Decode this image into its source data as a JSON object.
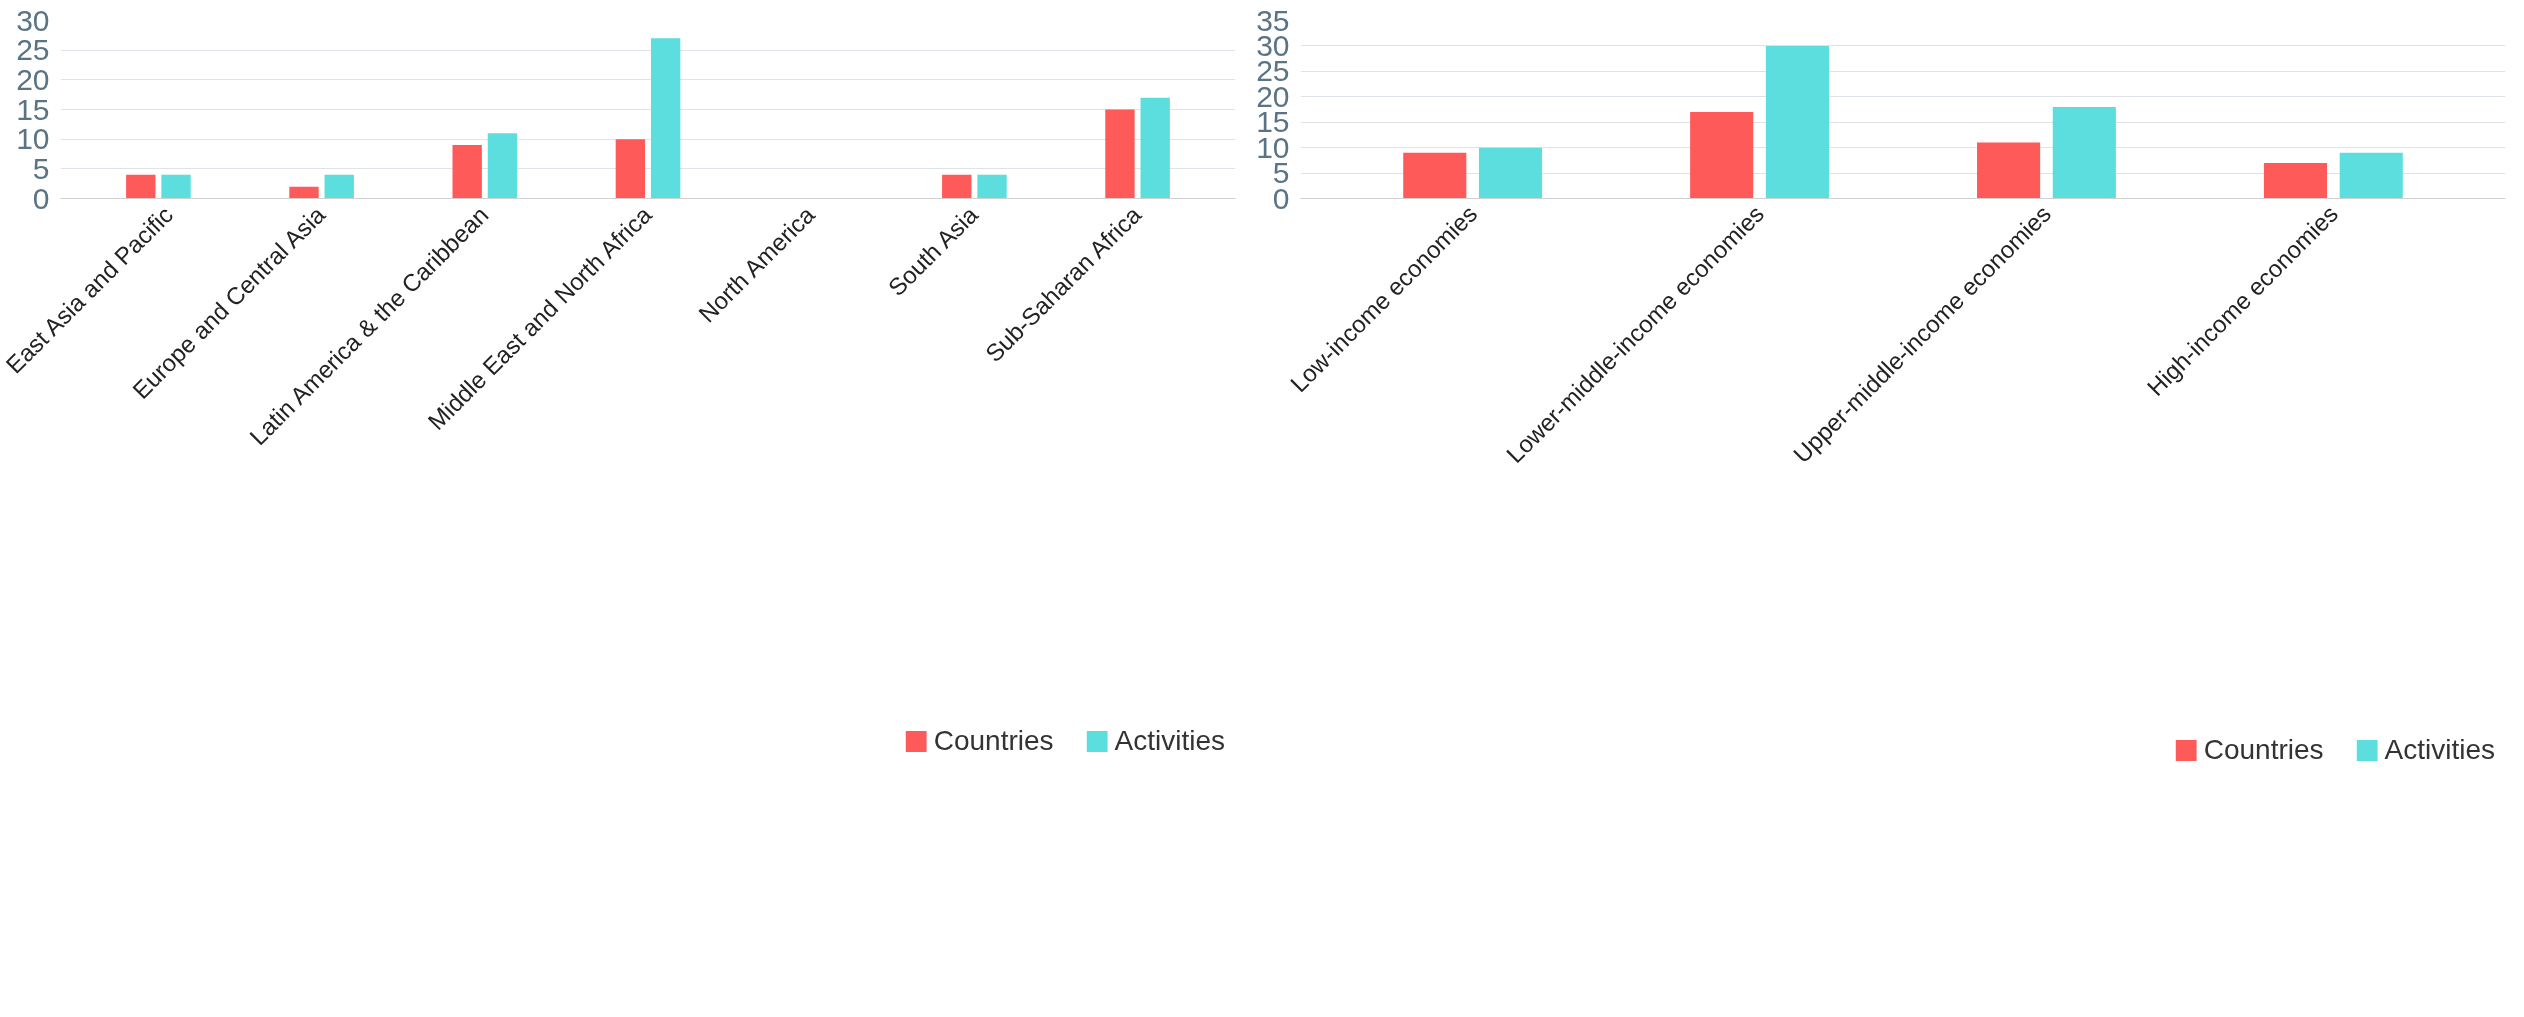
{
  "chart_data": [
    {
      "type": "bar",
      "categories": [
        "East Asia and Pacific",
        "Europe and Central Asia",
        "Latin America & the Caribbean",
        "Middle East and North Africa",
        "North America",
        "South Asia",
        "Sub-Saharan Africa"
      ],
      "series": [
        {
          "name": "Countries",
          "color": "#ff5a5a",
          "values": [
            4,
            2,
            9,
            10,
            0,
            4,
            15
          ]
        },
        {
          "name": "Activities",
          "color": "#5ddede",
          "values": [
            4,
            4,
            11,
            27,
            0,
            4,
            17
          ]
        }
      ],
      "ylim": [
        0,
        30
      ],
      "yticks": [
        0,
        5,
        10,
        15,
        20,
        25,
        30
      ],
      "grid": "y",
      "legend": "bottom right"
    },
    {
      "type": "bar",
      "categories": [
        "Low-income economies",
        "Lower-middle-income economies",
        "Upper-middle-income economies",
        "High-income economies"
      ],
      "series": [
        {
          "name": "Countries",
          "color": "#ff5a5a",
          "values": [
            9,
            17,
            11,
            7
          ]
        },
        {
          "name": "Activities",
          "color": "#5ddede",
          "values": [
            10,
            30,
            18,
            9
          ]
        }
      ],
      "ylim": [
        0,
        35
      ],
      "yticks": [
        0,
        5,
        10,
        15,
        20,
        25,
        30,
        35
      ],
      "grid": "y",
      "legend": "bottom right"
    }
  ]
}
